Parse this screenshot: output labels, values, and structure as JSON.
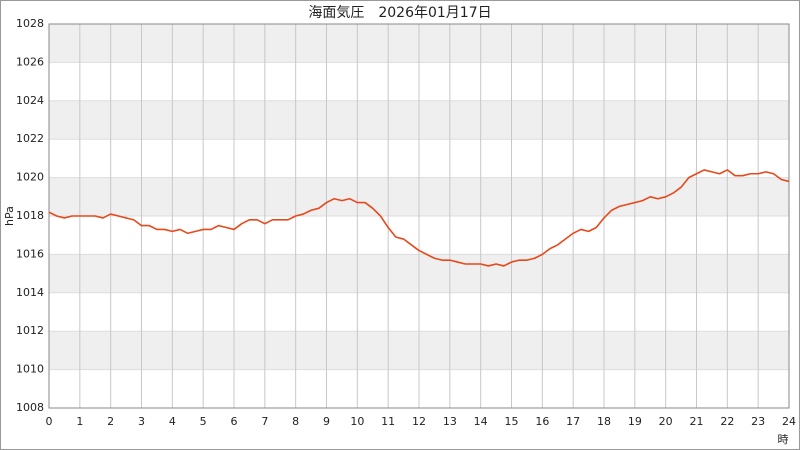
{
  "chart_data": {
    "type": "line",
    "title": "海面気圧　2026年01月17日",
    "x_label": "時",
    "y_label": "hPa",
    "x": [
      0,
      0.25,
      0.5,
      0.75,
      1,
      1.25,
      1.5,
      1.75,
      2,
      2.25,
      2.5,
      2.75,
      3,
      3.25,
      3.5,
      3.75,
      4,
      4.25,
      4.5,
      4.75,
      5,
      5.25,
      5.5,
      5.75,
      6,
      6.25,
      6.5,
      6.75,
      7,
      7.25,
      7.5,
      7.75,
      8,
      8.25,
      8.5,
      8.75,
      9,
      9.25,
      9.5,
      9.75,
      10,
      10.25,
      10.5,
      10.75,
      11,
      11.25,
      11.5,
      11.75,
      12,
      12.25,
      12.5,
      12.75,
      13,
      13.25,
      13.5,
      13.75,
      14,
      14.25,
      14.5,
      14.75,
      15,
      15.25,
      15.5,
      15.75,
      16,
      16.25,
      16.5,
      16.75,
      17,
      17.25,
      17.5,
      17.75,
      18,
      18.25,
      18.5,
      18.75,
      19,
      19.25,
      19.5,
      19.75,
      20,
      20.25,
      20.5,
      20.75,
      21,
      21.25,
      21.5,
      21.75,
      22,
      22.25,
      22.5,
      22.75,
      23,
      23.25,
      23.5,
      23.75,
      24
    ],
    "values": [
      1018.2,
      1018.0,
      1017.9,
      1018.0,
      1018.0,
      1018.0,
      1018.0,
      1017.9,
      1018.1,
      1018.0,
      1017.9,
      1017.8,
      1017.5,
      1017.5,
      1017.3,
      1017.3,
      1017.2,
      1017.3,
      1017.1,
      1017.2,
      1017.3,
      1017.3,
      1017.5,
      1017.4,
      1017.3,
      1017.6,
      1017.8,
      1017.8,
      1017.6,
      1017.8,
      1017.8,
      1017.8,
      1018.0,
      1018.1,
      1018.3,
      1018.4,
      1018.7,
      1018.9,
      1018.8,
      1018.9,
      1018.7,
      1018.7,
      1018.4,
      1018.0,
      1017.4,
      1016.9,
      1016.8,
      1016.5,
      1016.2,
      1016.0,
      1015.8,
      1015.7,
      1015.7,
      1015.6,
      1015.5,
      1015.5,
      1015.5,
      1015.4,
      1015.5,
      1015.4,
      1015.6,
      1015.7,
      1015.7,
      1015.8,
      1016.0,
      1016.3,
      1016.5,
      1016.8,
      1017.1,
      1017.3,
      1017.2,
      1017.4,
      1017.9,
      1018.3,
      1018.5,
      1018.6,
      1018.7,
      1018.8,
      1019.0,
      1018.9,
      1019.0,
      1019.2,
      1019.5,
      1020.0,
      1020.2,
      1020.4,
      1020.3,
      1020.2,
      1020.4,
      1020.1,
      1020.1,
      1020.2,
      1020.2,
      1020.3,
      1020.2,
      1019.9,
      1019.8
    ],
    "color": "#e8491b",
    "xlim": [
      0,
      24
    ],
    "xticks": [
      0,
      1,
      2,
      3,
      4,
      5,
      6,
      7,
      8,
      9,
      10,
      11,
      12,
      13,
      14,
      15,
      16,
      17,
      18,
      19,
      20,
      21,
      22,
      23,
      24
    ],
    "ylim": [
      1008,
      1028
    ],
    "yticks": [
      1008,
      1010,
      1012,
      1014,
      1016,
      1018,
      1020,
      1022,
      1024,
      1026,
      1028
    ],
    "grid": true,
    "banded": true
  }
}
